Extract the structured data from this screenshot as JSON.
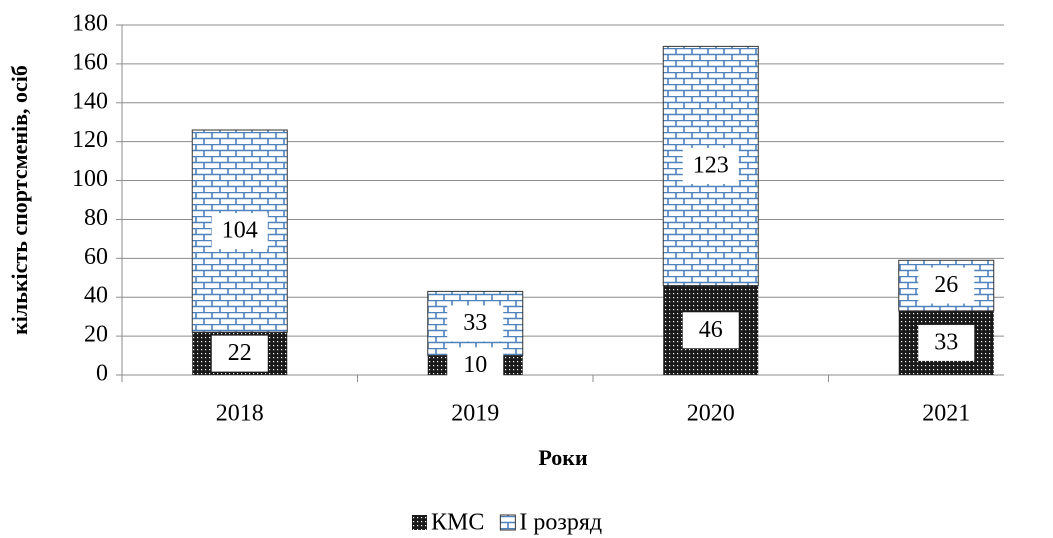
{
  "chart_data": {
    "type": "stacked-bar",
    "x_label": "Роки",
    "y_label": "кількість спортсменів, осіб",
    "categories": [
      "2018",
      "2019",
      "2020",
      "2021"
    ],
    "series": [
      {
        "name": "КМС",
        "color": "#1a1a1a",
        "values": [
          22,
          10,
          46,
          33
        ]
      },
      {
        "name": "I розряд",
        "color": "#4f81bd",
        "values": [
          104,
          33,
          123,
          26
        ]
      }
    ],
    "ylim": [
      0,
      180
    ],
    "yticks": [
      0,
      20,
      40,
      60,
      80,
      100,
      120,
      140,
      160,
      180
    ],
    "grid": true,
    "legend": "bottom"
  }
}
